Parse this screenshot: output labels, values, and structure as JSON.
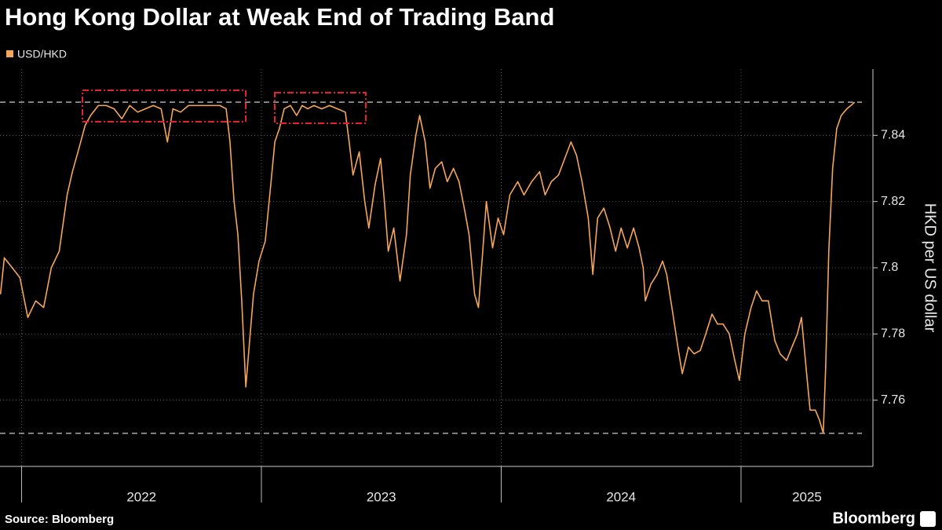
{
  "chart_data": {
    "type": "line",
    "title": "Hong Kong Dollar at Weak End of Trading Band",
    "y_axis_label": "HKD per US dollar",
    "source": "Source: Bloomberg",
    "brand": "Bloomberg",
    "series": [
      {
        "name": "USD/HKD",
        "color": "#f5a65b",
        "x": [
          2021.912,
          2021.928,
          2021.961,
          2021.993,
          2022.026,
          2022.059,
          2022.092,
          2022.124,
          2022.157,
          2022.19,
          2022.212,
          2022.239,
          2022.265,
          2022.288,
          2022.32,
          2022.353,
          2022.386,
          2022.418,
          2022.451,
          2022.484,
          2022.516,
          2022.549,
          2022.582,
          2022.608,
          2022.631,
          2022.663,
          2022.696,
          2022.729,
          2022.761,
          2022.794,
          2022.827,
          2022.853,
          2022.869,
          2022.886,
          2022.902,
          2022.918,
          2022.935,
          2022.951,
          2022.967,
          2022.99,
          2023.016,
          2023.039,
          2023.056,
          2023.075,
          2023.095,
          2023.121,
          2023.147,
          2023.17,
          2023.193,
          2023.219,
          2023.252,
          2023.284,
          2023.317,
          2023.35,
          2023.366,
          2023.382,
          2023.408,
          2023.431,
          2023.448,
          2023.474,
          2023.497,
          2023.513,
          2023.529,
          2023.552,
          2023.578,
          2023.605,
          2023.621,
          2023.644,
          2023.66,
          2023.683,
          2023.703,
          2023.725,
          2023.752,
          2023.775,
          2023.801,
          2023.824,
          2023.846,
          2023.866,
          2023.889,
          2023.905,
          2023.922,
          2023.938,
          2023.964,
          2023.987,
          2024.01,
          2024.036,
          2024.069,
          2024.095,
          2024.127,
          2024.16,
          2024.183,
          2024.209,
          2024.239,
          2024.265,
          2024.291,
          2024.314,
          2024.337,
          2024.363,
          2024.382,
          2024.402,
          2024.428,
          2024.454,
          2024.477,
          2024.5,
          2024.526,
          2024.552,
          2024.575,
          2024.592,
          2024.601,
          2024.624,
          2024.65,
          2024.673,
          2024.69,
          2024.716,
          2024.739,
          2024.755,
          2024.781,
          2024.804,
          2024.83,
          2024.853,
          2024.879,
          2024.902,
          2024.925,
          2024.951,
          2024.974,
          2024.993,
          2025.016,
          2025.042,
          2025.065,
          2025.088,
          2025.114,
          2025.141,
          2025.163,
          2025.19,
          2025.212,
          2025.235,
          2025.252,
          2025.271,
          2025.288,
          2025.31,
          2025.327,
          2025.343,
          2025.353,
          2025.366,
          2025.382,
          2025.399,
          2025.418,
          2025.441,
          2025.458,
          2025.474
        ],
        "values": [
          7.792,
          7.803,
          7.8,
          7.797,
          7.785,
          7.79,
          7.788,
          7.8,
          7.805,
          7.822,
          7.829,
          7.836,
          7.843,
          7.846,
          7.849,
          7.849,
          7.848,
          7.845,
          7.849,
          7.847,
          7.848,
          7.849,
          7.848,
          7.838,
          7.848,
          7.847,
          7.849,
          7.849,
          7.849,
          7.849,
          7.849,
          7.848,
          7.838,
          7.82,
          7.81,
          7.79,
          7.764,
          7.778,
          7.792,
          7.802,
          7.808,
          7.825,
          7.838,
          7.842,
          7.848,
          7.849,
          7.846,
          7.849,
          7.848,
          7.849,
          7.848,
          7.849,
          7.848,
          7.847,
          7.838,
          7.828,
          7.835,
          7.82,
          7.812,
          7.825,
          7.833,
          7.82,
          7.805,
          7.812,
          7.796,
          7.81,
          7.828,
          7.84,
          7.846,
          7.838,
          7.824,
          7.83,
          7.832,
          7.826,
          7.83,
          7.826,
          7.818,
          7.81,
          7.792,
          7.788,
          7.804,
          7.82,
          7.806,
          7.815,
          7.81,
          7.822,
          7.826,
          7.822,
          7.826,
          7.829,
          7.822,
          7.826,
          7.828,
          7.833,
          7.838,
          7.834,
          7.826,
          7.815,
          7.798,
          7.815,
          7.818,
          7.812,
          7.805,
          7.812,
          7.806,
          7.812,
          7.806,
          7.8,
          7.79,
          7.795,
          7.798,
          7.802,
          7.798,
          7.786,
          7.775,
          7.768,
          7.776,
          7.774,
          7.775,
          7.78,
          7.786,
          7.783,
          7.783,
          7.78,
          7.772,
          7.766,
          7.78,
          7.788,
          7.793,
          7.79,
          7.79,
          7.778,
          7.774,
          7.772,
          7.776,
          7.78,
          7.785,
          7.77,
          7.757,
          7.757,
          7.754,
          7.75,
          7.77,
          7.805,
          7.83,
          7.842,
          7.846,
          7.848,
          7.849,
          7.85
        ]
      }
    ],
    "reference_lines": [
      7.85,
      7.75
    ],
    "xlim": [
      2021.91,
      2025.55
    ],
    "xticks": [
      2022,
      2023,
      2024,
      2025
    ],
    "ylim": [
      7.74,
      7.86
    ],
    "yticks": [
      7.76,
      7.78,
      7.8,
      7.82,
      7.84
    ],
    "grid": true
  }
}
